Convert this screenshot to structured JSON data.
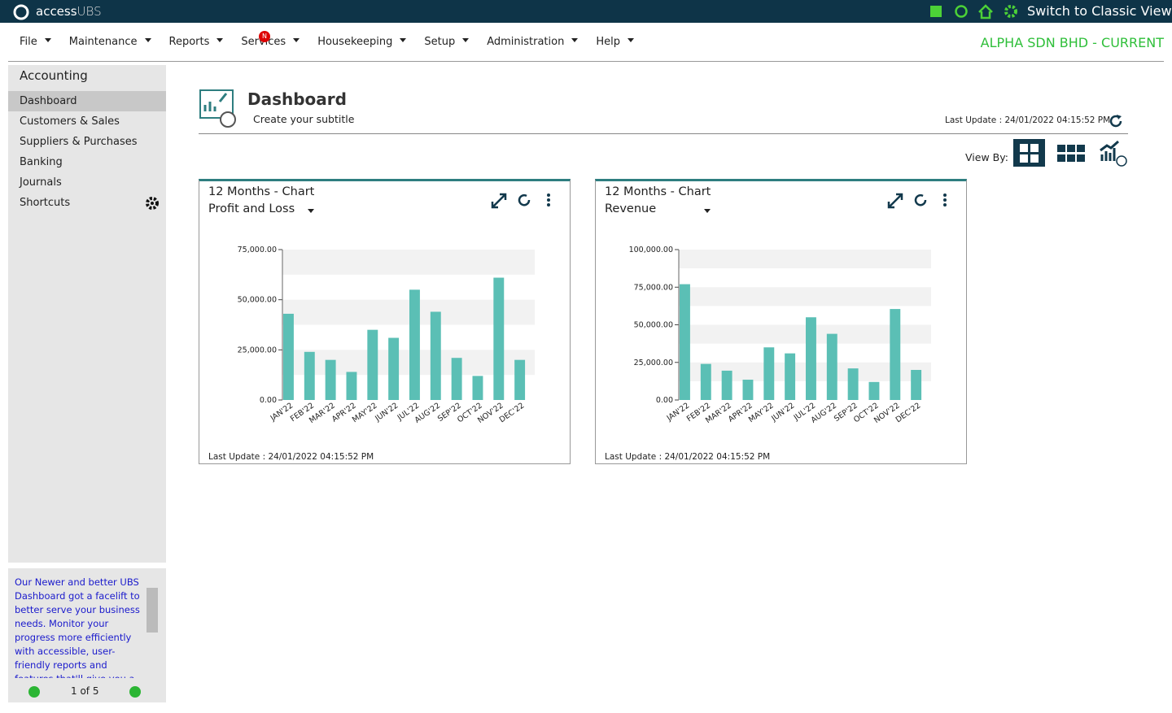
{
  "topbar": {
    "brand": "access",
    "brand_suffix": "UBS",
    "switch": "Switch to Classic View"
  },
  "menu": {
    "items": [
      "File",
      "Maintenance",
      "Reports",
      "Services",
      "Housekeeping",
      "Setup",
      "Administration",
      "Help"
    ],
    "badge": "N",
    "company": "ALPHA SDN BHD - CURRENT"
  },
  "sidebar": {
    "title": "Accounting",
    "items": [
      "Dashboard",
      "Customers & Sales",
      "Suppliers & Purchases",
      "Banking",
      "Journals",
      "Shortcuts"
    ],
    "news": "Our Newer and better UBS Dashboard got a facelift to better serve your business needs. Monitor your progress more efficiently with accessible, user-friendly reports and features that'll give you a",
    "pager": "1 of 5"
  },
  "dashboard": {
    "title": "Dashboard",
    "subtitle": "Create your subtitle",
    "last_update": "Last Update : 24/01/2022 04:15:52 PM",
    "view_by": "View By:"
  },
  "widgets": [
    {
      "title": "12 Months - Chart",
      "selector": "Profit and Loss",
      "footer": "Last Update : 24/01/2022 04:15:52 PM",
      "chart_data": {
        "type": "bar",
        "categories": [
          "JAN'22",
          "FEB'22",
          "MAR'22",
          "APR'22",
          "MAY'22",
          "JUN'22",
          "JUL'22",
          "AUG'22",
          "SEP'22",
          "OCT'22",
          "NOV'22",
          "DEC'22"
        ],
        "values": [
          43000,
          24000,
          20000,
          14000,
          35000,
          31000,
          55000,
          44000,
          21000,
          12000,
          61000,
          20000
        ],
        "color": "#5bbfb5",
        "ylim": [
          0,
          75000
        ],
        "yticks": [
          {
            "value": 0,
            "label": "0.00"
          },
          {
            "value": 25000,
            "label": "25,000.00"
          },
          {
            "value": 50000,
            "label": "50,000.00"
          },
          {
            "value": 75000,
            "label": "75,000.00"
          }
        ],
        "grid": true
      }
    },
    {
      "title": "12 Months - Chart",
      "selector": "Revenue",
      "footer": "Last Update : 24/01/2022 04:15:52 PM",
      "chart_data": {
        "type": "bar",
        "categories": [
          "JAN'22",
          "FEB'22",
          "MAR'22",
          "APR'22",
          "MAY'22",
          "JUN'22",
          "JUL'22",
          "AUG'22",
          "SEP'22",
          "OCT'22",
          "NOV'22",
          "DEC'22"
        ],
        "values": [
          77000,
          24000,
          19500,
          13500,
          35000,
          31000,
          55000,
          44000,
          21000,
          12000,
          60500,
          20000
        ],
        "color": "#5bbfb5",
        "ylim": [
          0,
          100000
        ],
        "yticks": [
          {
            "value": 0,
            "label": "0.00"
          },
          {
            "value": 25000,
            "label": "25,000.00"
          },
          {
            "value": 50000,
            "label": "50,000.00"
          },
          {
            "value": 75000,
            "label": "75,000.00"
          },
          {
            "value": 100000,
            "label": "100,000.00"
          }
        ],
        "grid": true
      }
    }
  ]
}
